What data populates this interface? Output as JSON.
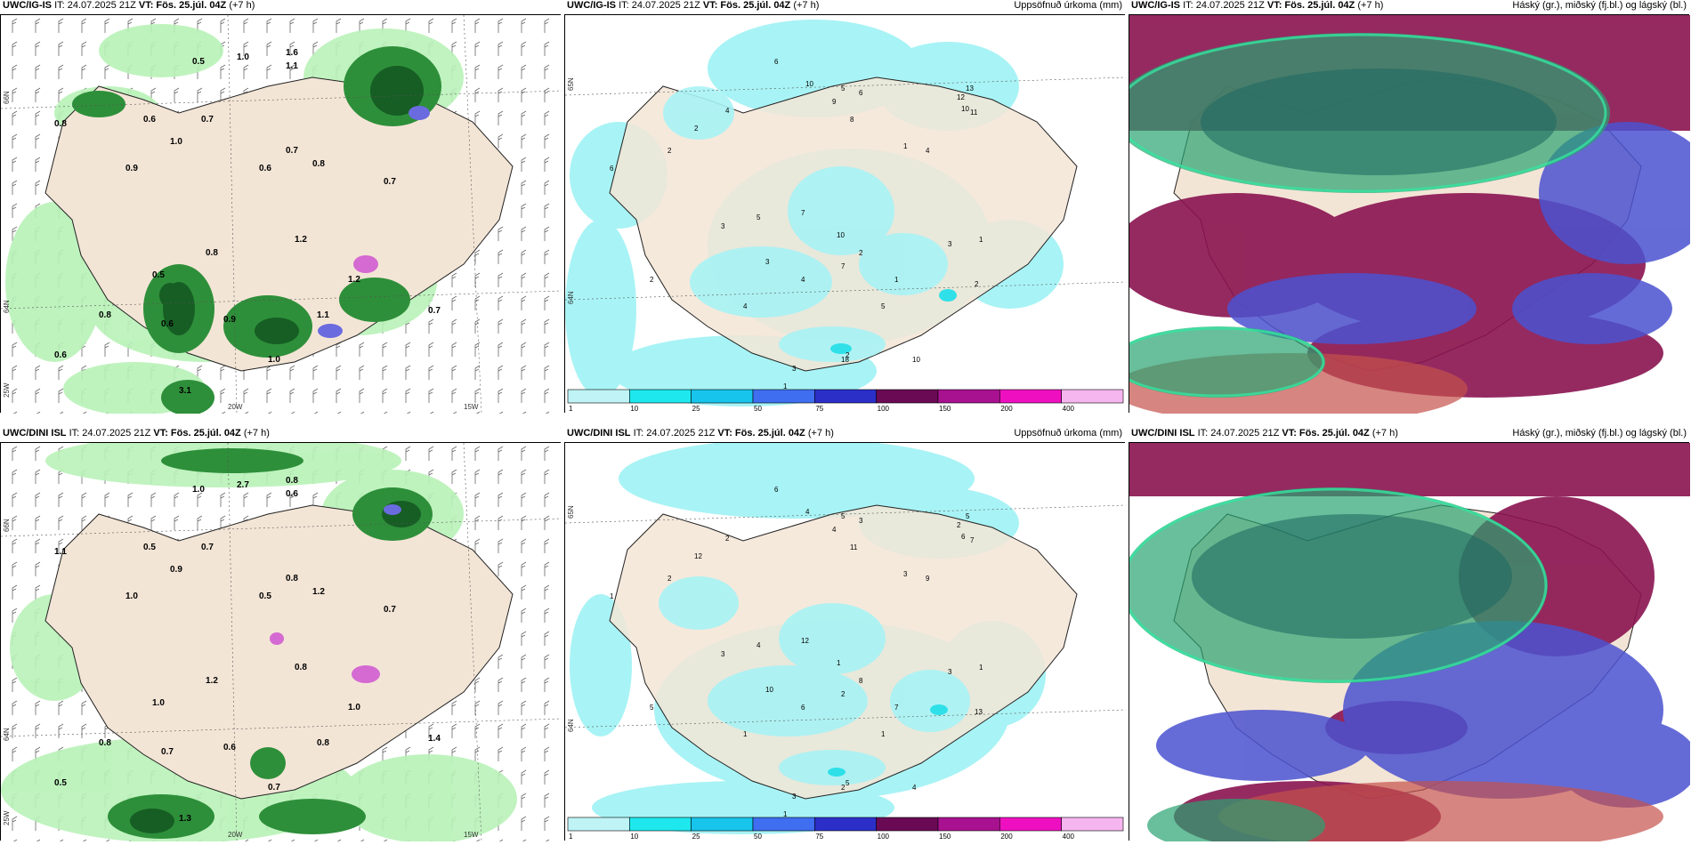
{
  "rows": [
    {
      "model": "UWC/IG-IS",
      "it_label": "IT: 24.07.2025 21Z",
      "vt_label": "VT: Fös. 25.júl. 04Z",
      "lead": "(+7 h)",
      "panels": {
        "wind": {
          "lat_labels": [
            "66N",
            "64N",
            "25W"
          ],
          "lon_labels": [
            "20W",
            "15W"
          ],
          "values": [
            "0.5",
            "1.0",
            "1.6",
            "1.1",
            "0.6",
            "0.7",
            "0.8",
            "1.0",
            "0.9",
            "0.7",
            "0.6",
            "0.8",
            "1.2",
            "0.7",
            "0.8",
            "0.5",
            "0.6",
            "1.1",
            "1.0",
            "3.1",
            "1.2",
            "0.9",
            "0.6",
            "0.8",
            "0.7"
          ]
        },
        "precip": {
          "right_title": "Uppsöfnuð úrkoma (mm)",
          "lat_labels": [
            "65N",
            "64N"
          ],
          "values": [
            "6",
            "10",
            "5",
            "6",
            "4",
            "2",
            "8",
            "9",
            "12",
            "13",
            "10",
            "11",
            "1",
            "4",
            "6",
            "2",
            "3",
            "5",
            "7",
            "10",
            "2",
            "3",
            "4",
            "1",
            "2",
            "5",
            "7",
            "3",
            "2",
            "1",
            "10",
            "1",
            "3",
            "2",
            "4",
            "1",
            "18"
          ]
        },
        "cloud": {
          "right_title": "Háský (gr.), miðský (fj.bl.) og lágský (bl.)"
        }
      }
    },
    {
      "model": "UWC/DINI ISL",
      "it_label": "IT: 24.07.2025 21Z",
      "vt_label": "VT: Fös. 25.júl. 04Z",
      "lead": "(+7 h)",
      "panels": {
        "wind": {
          "lat_labels": [
            "66N",
            "64N",
            "25W"
          ],
          "lon_labels": [
            "20W",
            "15W"
          ],
          "values": [
            "1.0",
            "2.7",
            "0.8",
            "0.6",
            "0.5",
            "0.7",
            "1.1",
            "0.9",
            "1.0",
            "0.8",
            "0.5",
            "1.2",
            "0.8",
            "0.7",
            "1.2",
            "1.0",
            "0.5",
            "0.8",
            "0.7",
            "1.3",
            "1.0",
            "0.6",
            "0.7",
            "0.8",
            "1.4"
          ]
        },
        "precip": {
          "right_title": "Uppsöfnuð úrkoma (mm)",
          "lat_labels": [
            "65N",
            "64N"
          ],
          "values": [
            "6",
            "4",
            "5",
            "3",
            "2",
            "12",
            "11",
            "4",
            "2",
            "5",
            "6",
            "7",
            "3",
            "9",
            "1",
            "2",
            "3",
            "4",
            "12",
            "1",
            "8",
            "10",
            "6",
            "7",
            "5",
            "1",
            "2",
            "3",
            "13",
            "1",
            "4",
            "2",
            "3",
            "5",
            "1",
            "1",
            "2"
          ]
        },
        "cloud": {
          "right_title": "Háský (gr.), miðský (fj.bl.) og lágský (bl.)"
        }
      }
    }
  ],
  "legend": {
    "ticks": [
      "1",
      "10",
      "25",
      "50",
      "75",
      "100",
      "150",
      "200",
      "400"
    ],
    "colors": [
      "#bff3f5",
      "#1ee8ee",
      "#17c4ec",
      "#3f6ef0",
      "#2b2fc8",
      "#6a0a55",
      "#a8118f",
      "#ee10c0",
      "#f5b5ef"
    ]
  },
  "colors": {
    "land": "#f3e5d6",
    "precip_light": "#a8f3f5",
    "precip_mid": "#2fe0e8",
    "green_light": "#b9f2b8",
    "green_dark": "#165e24",
    "high_cloud": "#5fc48a",
    "mid_cloud": "#8a1350",
    "low_cloud": "#4b52d0"
  }
}
